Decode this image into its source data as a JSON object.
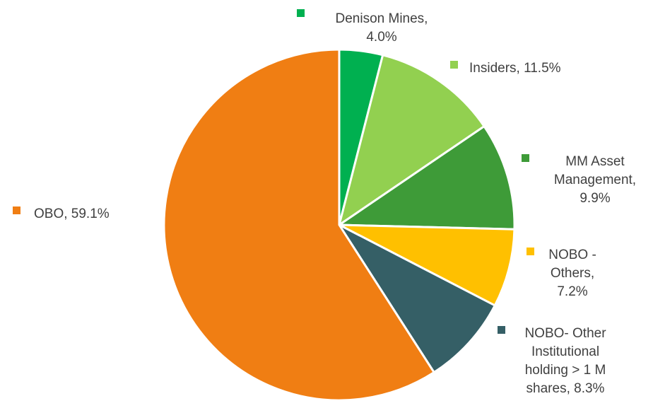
{
  "chart_data": {
    "type": "pie",
    "title": "",
    "start_angle_deg": 0,
    "direction": "clockwise",
    "slices": [
      {
        "name": "Denison Mines",
        "value": 4.0,
        "label_lines": [
          "Denison Mines,",
          "4.0%"
        ],
        "color": "#00B050"
      },
      {
        "name": "Insiders",
        "value": 11.5,
        "label_lines": [
          "Insiders, 11.5%"
        ],
        "color": "#92D050"
      },
      {
        "name": "MM Asset Management",
        "value": 9.9,
        "label_lines": [
          "MM Asset",
          "Management,",
          "9.9%"
        ],
        "color": "#3E9B38"
      },
      {
        "name": "NOBO - Others",
        "value": 7.2,
        "label_lines": [
          "NOBO -",
          "Others,",
          "7.2%"
        ],
        "color": "#FFC000"
      },
      {
        "name": "NOBO- Other Institutional holding > 1 M shares",
        "value": 8.3,
        "label_lines": [
          "NOBO- Other",
          "Institutional",
          "holding > 1 M",
          "shares, 8.3%"
        ],
        "color": "#355F66"
      },
      {
        "name": "OBO",
        "value": 59.1,
        "label_lines": [
          "OBO, 59.1%"
        ],
        "color": "#F07E13"
      }
    ]
  }
}
